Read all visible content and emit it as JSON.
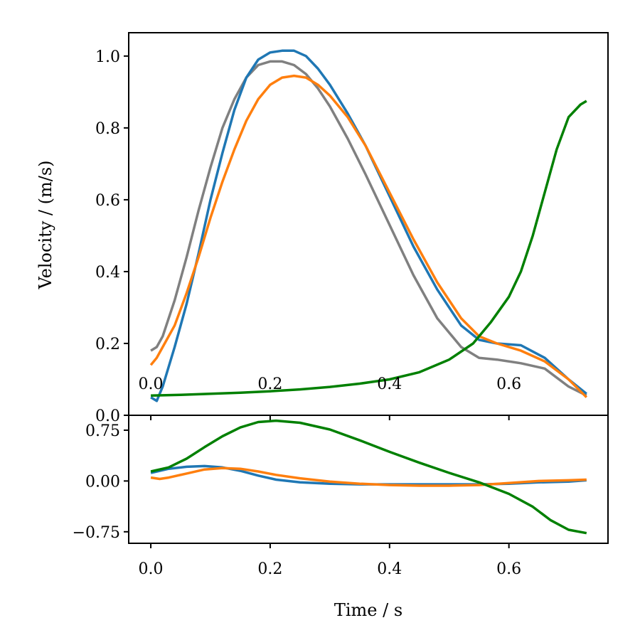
{
  "chart_data": [
    {
      "type": "line",
      "title": "",
      "xlabel": "",
      "ylabel": "Velocity / (m/s)",
      "xlim": [
        -0.037,
        0.766
      ],
      "ylim": [
        0.0,
        1.065
      ],
      "xticks": [
        0.0,
        0.2,
        0.4,
        0.6
      ],
      "xtick_labels": [
        "0.0",
        "0.2",
        "0.4",
        "0.6"
      ],
      "yticks": [
        0.0,
        0.2,
        0.4,
        0.6,
        0.8,
        1.0
      ],
      "ytick_labels": [
        "0.0",
        "0.2",
        "0.4",
        "0.6",
        "0.8",
        "1.0"
      ],
      "grid": false,
      "legend": "none",
      "series": [
        {
          "name": "gray",
          "color": "#808080",
          "x": [
            0.0,
            0.01,
            0.02,
            0.04,
            0.06,
            0.08,
            0.1,
            0.12,
            0.14,
            0.16,
            0.18,
            0.2,
            0.22,
            0.24,
            0.26,
            0.28,
            0.3,
            0.33,
            0.36,
            0.4,
            0.44,
            0.48,
            0.52,
            0.55,
            0.58,
            0.62,
            0.66,
            0.7,
            0.73
          ],
          "y": [
            0.18,
            0.19,
            0.22,
            0.32,
            0.44,
            0.57,
            0.69,
            0.8,
            0.88,
            0.94,
            0.975,
            0.985,
            0.985,
            0.975,
            0.95,
            0.91,
            0.86,
            0.77,
            0.67,
            0.53,
            0.39,
            0.27,
            0.19,
            0.16,
            0.155,
            0.145,
            0.13,
            0.08,
            0.055
          ]
        },
        {
          "name": "blue",
          "color": "#1f77b4",
          "x": [
            0.0,
            0.01,
            0.02,
            0.04,
            0.06,
            0.08,
            0.1,
            0.12,
            0.14,
            0.16,
            0.18,
            0.2,
            0.22,
            0.24,
            0.26,
            0.28,
            0.3,
            0.33,
            0.36,
            0.4,
            0.44,
            0.48,
            0.52,
            0.55,
            0.58,
            0.62,
            0.66,
            0.7,
            0.73
          ],
          "y": [
            0.05,
            0.04,
            0.08,
            0.19,
            0.31,
            0.45,
            0.6,
            0.73,
            0.85,
            0.94,
            0.99,
            1.01,
            1.015,
            1.015,
            1.0,
            0.965,
            0.92,
            0.84,
            0.75,
            0.61,
            0.47,
            0.35,
            0.25,
            0.21,
            0.2,
            0.195,
            0.16,
            0.1,
            0.06
          ]
        },
        {
          "name": "orange",
          "color": "#ff7f0e",
          "x": [
            0.0,
            0.01,
            0.02,
            0.04,
            0.06,
            0.08,
            0.1,
            0.12,
            0.14,
            0.16,
            0.18,
            0.2,
            0.22,
            0.24,
            0.26,
            0.28,
            0.3,
            0.33,
            0.36,
            0.4,
            0.44,
            0.48,
            0.52,
            0.55,
            0.58,
            0.62,
            0.66,
            0.7,
            0.73
          ],
          "y": [
            0.14,
            0.16,
            0.19,
            0.25,
            0.34,
            0.44,
            0.55,
            0.65,
            0.74,
            0.82,
            0.88,
            0.92,
            0.94,
            0.945,
            0.94,
            0.92,
            0.89,
            0.83,
            0.75,
            0.62,
            0.49,
            0.37,
            0.27,
            0.22,
            0.2,
            0.18,
            0.15,
            0.1,
            0.05
          ]
        },
        {
          "name": "green",
          "color": "#008000",
          "x": [
            0.0,
            0.05,
            0.1,
            0.15,
            0.2,
            0.25,
            0.3,
            0.35,
            0.4,
            0.45,
            0.5,
            0.54,
            0.57,
            0.6,
            0.62,
            0.64,
            0.66,
            0.68,
            0.7,
            0.72,
            0.73
          ],
          "y": [
            0.055,
            0.057,
            0.06,
            0.063,
            0.067,
            0.072,
            0.079,
            0.088,
            0.1,
            0.12,
            0.155,
            0.2,
            0.26,
            0.33,
            0.4,
            0.5,
            0.62,
            0.74,
            0.83,
            0.865,
            0.875
          ]
        }
      ]
    },
    {
      "type": "line",
      "title": "",
      "xlabel": "Time / s",
      "ylabel": "",
      "xlim": [
        -0.037,
        0.766
      ],
      "ylim": [
        -0.92,
        0.97
      ],
      "xticks": [
        0.0,
        0.2,
        0.4,
        0.6
      ],
      "xtick_labels": [
        "0.0",
        "0.2",
        "0.4",
        "0.6"
      ],
      "yticks": [
        -0.75,
        0.0,
        0.75
      ],
      "ytick_labels": [
        "−0.75",
        "0.00",
        "0.75"
      ],
      "grid": false,
      "legend": "none",
      "series": [
        {
          "name": "blue",
          "color": "#1f77b4",
          "x": [
            0.0,
            0.03,
            0.06,
            0.09,
            0.12,
            0.15,
            0.18,
            0.21,
            0.25,
            0.3,
            0.35,
            0.4,
            0.45,
            0.5,
            0.55,
            0.6,
            0.65,
            0.7,
            0.73
          ],
          "y": [
            0.12,
            0.18,
            0.21,
            0.22,
            0.2,
            0.15,
            0.08,
            0.02,
            -0.02,
            -0.04,
            -0.05,
            -0.05,
            -0.05,
            -0.05,
            -0.05,
            -0.04,
            -0.02,
            -0.01,
            0.01
          ]
        },
        {
          "name": "orange",
          "color": "#ff7f0e",
          "x": [
            0.0,
            0.015,
            0.03,
            0.06,
            0.09,
            0.12,
            0.15,
            0.18,
            0.21,
            0.25,
            0.3,
            0.35,
            0.4,
            0.45,
            0.5,
            0.55,
            0.6,
            0.65,
            0.7,
            0.73
          ],
          "y": [
            0.05,
            0.03,
            0.05,
            0.11,
            0.17,
            0.19,
            0.18,
            0.14,
            0.09,
            0.04,
            -0.01,
            -0.04,
            -0.06,
            -0.07,
            -0.07,
            -0.06,
            -0.03,
            0.0,
            0.01,
            0.02
          ]
        },
        {
          "name": "green",
          "color": "#008000",
          "x": [
            0.0,
            0.03,
            0.06,
            0.09,
            0.12,
            0.15,
            0.18,
            0.21,
            0.25,
            0.3,
            0.35,
            0.4,
            0.45,
            0.5,
            0.55,
            0.6,
            0.64,
            0.67,
            0.7,
            0.73
          ],
          "y": [
            0.14,
            0.2,
            0.33,
            0.5,
            0.66,
            0.79,
            0.87,
            0.89,
            0.86,
            0.76,
            0.6,
            0.43,
            0.27,
            0.12,
            -0.02,
            -0.19,
            -0.38,
            -0.58,
            -0.72,
            -0.77
          ]
        }
      ]
    }
  ]
}
